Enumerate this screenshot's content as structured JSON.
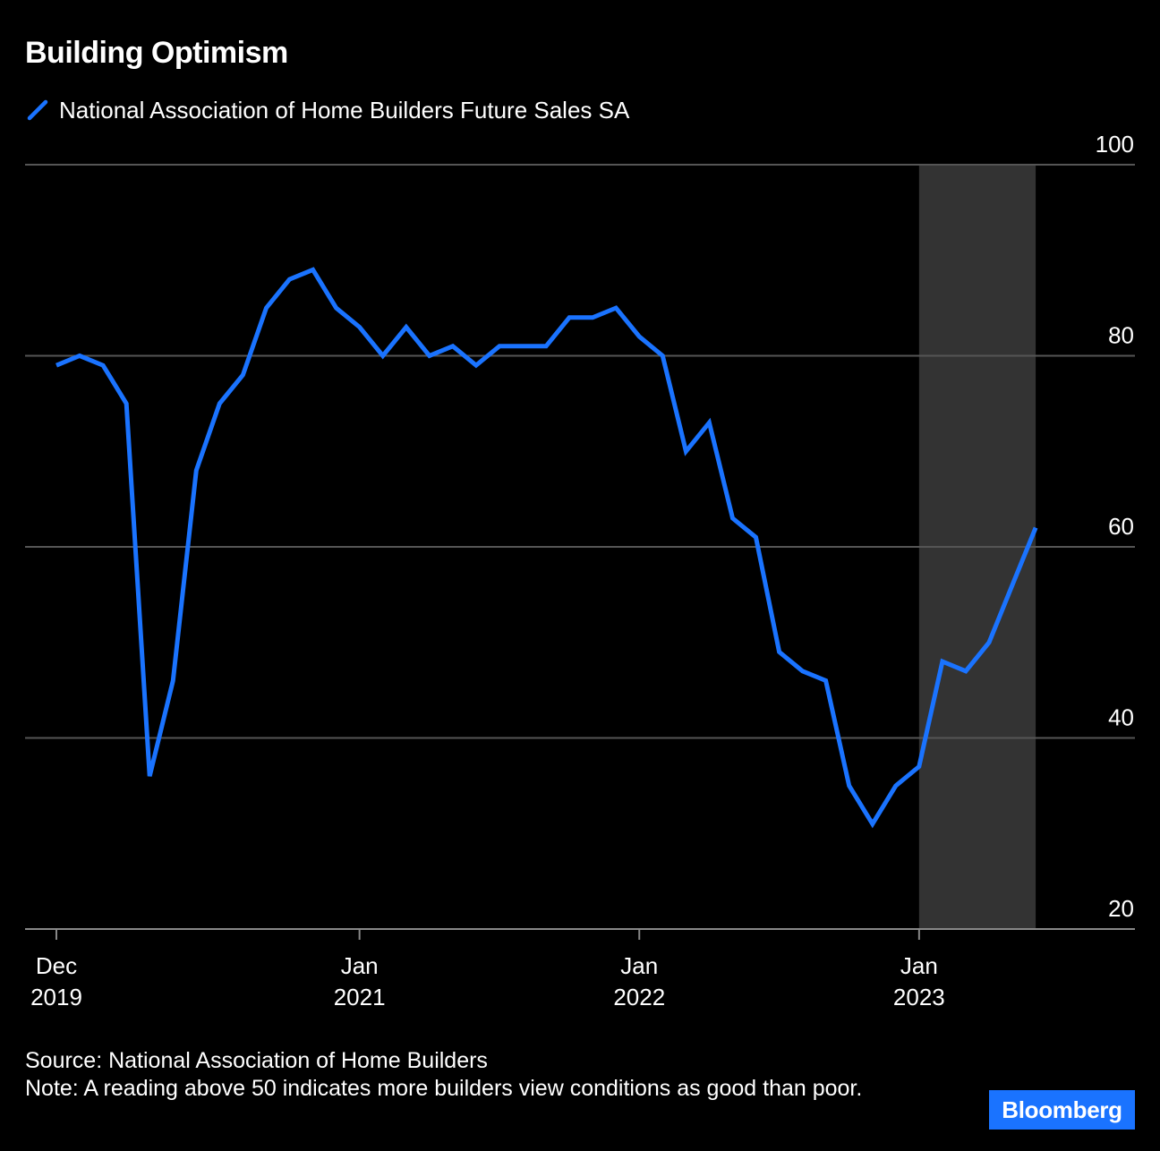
{
  "chart_data": {
    "type": "line",
    "title": "Building Optimism",
    "subtitle": "",
    "xlabel": "",
    "ylabel": "",
    "ylim": [
      20,
      100
    ],
    "y_ticks": [
      "100",
      "80",
      "60",
      "40",
      "20"
    ],
    "y_tick_values": [
      100,
      80,
      60,
      40,
      20
    ],
    "y_axis_position": "right",
    "grid": true,
    "legend_placement": "top-left",
    "x_tick_labels": [
      {
        "month": "Dec",
        "year": "2019",
        "x": "2019-12"
      },
      {
        "month": "Jan",
        "year": "2021",
        "x": "2021-01"
      },
      {
        "month": "Jan",
        "year": "2022",
        "x": "2022-01"
      },
      {
        "month": "Jan",
        "year": "2023",
        "x": "2023-01"
      }
    ],
    "shaded_region": {
      "start": "2023-01",
      "end": "2023-06"
    },
    "series": [
      {
        "name": "National Association of Home Builders Future Sales SA",
        "color": "#1a73ff",
        "x": [
          "2019-12",
          "2020-01",
          "2020-02",
          "2020-03",
          "2020-04",
          "2020-05",
          "2020-06",
          "2020-07",
          "2020-08",
          "2020-09",
          "2020-10",
          "2020-11",
          "2020-12",
          "2021-01",
          "2021-02",
          "2021-03",
          "2021-04",
          "2021-05",
          "2021-06",
          "2021-07",
          "2021-08",
          "2021-09",
          "2021-10",
          "2021-11",
          "2021-12",
          "2022-01",
          "2022-02",
          "2022-03",
          "2022-04",
          "2022-05",
          "2022-06",
          "2022-07",
          "2022-08",
          "2022-09",
          "2022-10",
          "2022-11",
          "2022-12",
          "2023-01",
          "2023-02",
          "2023-03",
          "2023-04",
          "2023-05",
          "2023-06"
        ],
        "values": [
          79,
          80,
          79,
          75,
          36,
          46,
          68,
          75,
          78,
          85,
          88,
          89,
          85,
          83,
          80,
          83,
          80,
          81,
          79,
          81,
          81,
          81,
          84,
          84,
          85,
          82,
          80,
          70,
          73,
          63,
          61,
          49,
          47,
          46,
          35,
          31,
          35,
          37,
          48,
          47,
          50,
          56,
          62
        ]
      }
    ]
  },
  "footer": {
    "source": "Source: National Association of Home Builders",
    "note": "Note: A reading above 50 indicates more builders view conditions as good than poor."
  },
  "branding": {
    "logo_text": "Bloomberg",
    "logo_color": "#1a73ff"
  },
  "colors": {
    "background": "#000000",
    "gridline": "#555555",
    "shaded_region": "#333333",
    "axis": "#888888"
  }
}
